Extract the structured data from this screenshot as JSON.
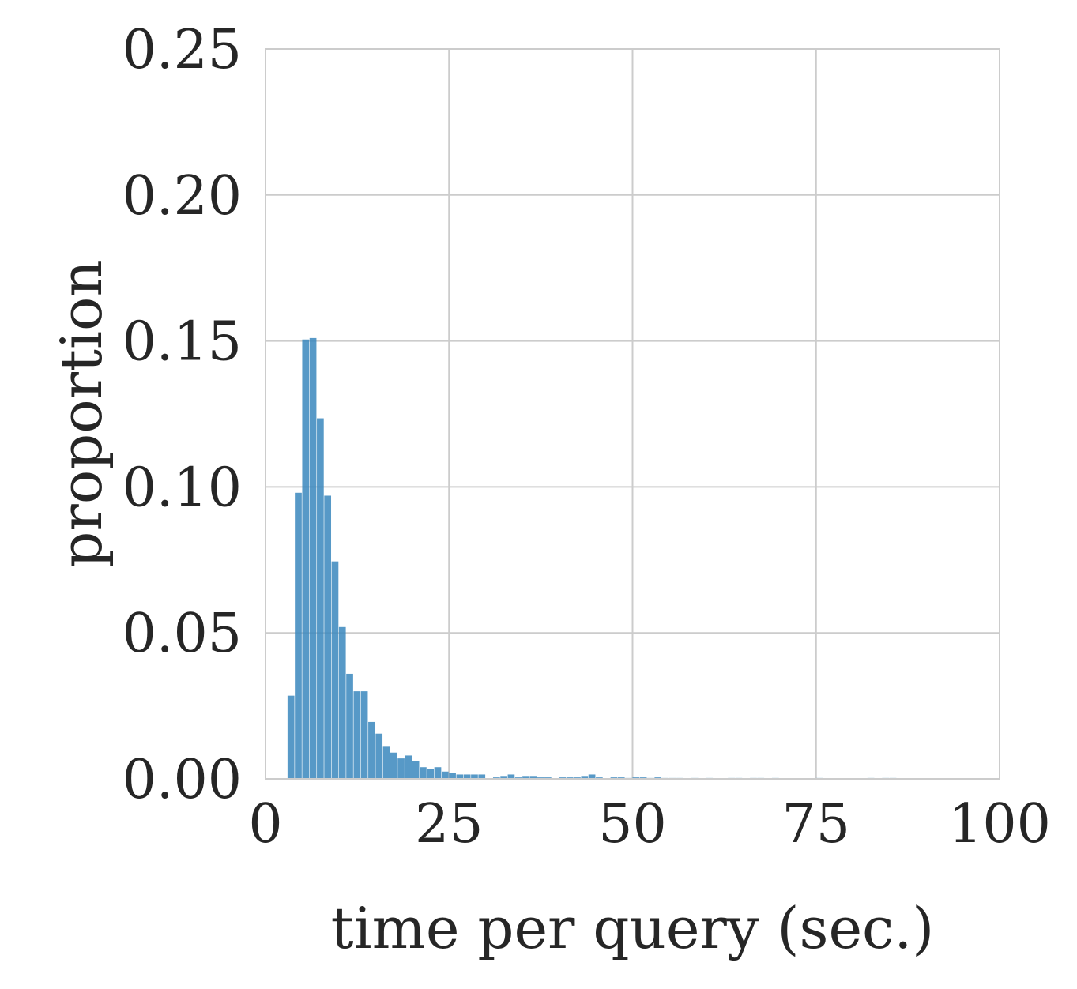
{
  "chart_data": {
    "type": "bar",
    "xlabel": "time per query (sec.)",
    "ylabel": "proportion",
    "xlim": [
      0,
      100
    ],
    "ylim": [
      0,
      0.25
    ],
    "xticks": [
      "0",
      "25",
      "50",
      "75",
      "100"
    ],
    "yticks": [
      "0.00",
      "0.05",
      "0.10",
      "0.15",
      "0.20",
      "0.25"
    ],
    "grid": true,
    "bar_color": "#3a87bd",
    "bin_width": 1,
    "x": [
      3,
      4,
      5,
      6,
      7,
      8,
      9,
      10,
      11,
      12,
      13,
      14,
      15,
      16,
      17,
      18,
      19,
      20,
      21,
      22,
      23,
      24,
      25,
      26,
      27,
      28,
      29,
      30,
      31,
      32,
      33,
      34,
      35,
      36,
      37,
      38,
      39,
      40,
      41,
      42,
      43,
      44,
      45,
      46,
      47,
      48,
      49,
      50,
      51,
      52,
      53,
      54,
      55,
      56,
      57,
      58,
      59,
      60,
      61,
      62,
      63,
      64,
      65,
      66,
      67,
      68,
      69,
      70,
      71,
      72,
      73,
      74,
      75,
      76,
      77,
      78,
      79,
      80,
      81,
      82,
      83,
      84,
      85,
      86,
      87,
      88,
      89,
      90,
      91,
      92,
      93,
      94,
      95,
      96,
      97,
      98,
      99
    ],
    "values": [
      0.0285,
      0.098,
      0.1505,
      0.151,
      0.1235,
      0.097,
      0.0745,
      0.052,
      0.036,
      0.03,
      0.03,
      0.0195,
      0.0155,
      0.011,
      0.009,
      0.007,
      0.008,
      0.006,
      0.004,
      0.0035,
      0.004,
      0.0025,
      0.002,
      0.0015,
      0.0015,
      0.0015,
      0.0015,
      0,
      0.0005,
      0.001,
      0.0015,
      0.0005,
      0.001,
      0.001,
      0.0005,
      0.0005,
      0,
      0.0005,
      0.0005,
      0.0005,
      0.001,
      0.0015,
      0.0005,
      0,
      0.0005,
      0.0005,
      0.0003,
      0.0005,
      0.0005,
      0.0003,
      0.0005,
      0.0003,
      0.0003,
      0.0003,
      0,
      0.0003,
      0,
      0.0003,
      0,
      0,
      0.0003,
      0.0003,
      0,
      0.0003,
      0.0003,
      0,
      0.0003,
      0,
      0,
      0,
      0,
      0,
      0.0003,
      0,
      0,
      0,
      0,
      0,
      0,
      0.0003,
      0,
      0.0003,
      0.0003,
      0,
      0,
      0,
      0,
      0,
      0,
      0,
      0,
      0,
      0,
      0,
      0,
      0,
      0
    ]
  }
}
